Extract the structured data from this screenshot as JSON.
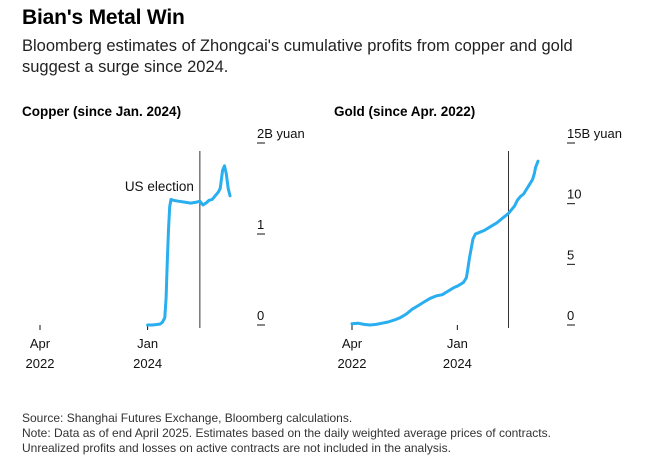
{
  "header": {
    "title": "Bian's Metal Win",
    "subtitle": "Bloomberg estimates of Zhongcai's cumulative profits from copper and gold suggest a surge since 2024."
  },
  "colors": {
    "line": "#29aef0",
    "axis": "#111111",
    "marker": "#333333"
  },
  "footer": {
    "source": "Source: Shanghai Futures Exchange, Bloomberg calculations.",
    "note1": "Note: Data as of end April 2025. Estimates based on the daily weighted average prices of contracts.",
    "note2": "Unrealized profits and losses on active contracts are not included in the analysis."
  },
  "chart_data": [
    {
      "type": "line",
      "title": "Copper (since Jan. 2024)",
      "unit": "B yuan",
      "xlim": [
        2022.25,
        2025.34
      ],
      "ylim": [
        0,
        2
      ],
      "yticks": [
        {
          "value": 2,
          "label": "2B yuan"
        },
        {
          "value": 1,
          "label": "1"
        },
        {
          "value": 0,
          "label": "0"
        }
      ],
      "xticks": [
        {
          "value": 2022.25,
          "label1": "Apr",
          "label2": "2022"
        },
        {
          "value": 2024.0,
          "label1": "Jan",
          "label2": "2024"
        }
      ],
      "annotation": {
        "label": "US election",
        "x": 2024.85
      },
      "series": [
        {
          "name": "Copper cumulative profit",
          "x": [
            2024.0,
            2024.08,
            2024.2,
            2024.24,
            2024.28,
            2024.3,
            2024.32,
            2024.34,
            2024.36,
            2024.38,
            2024.42,
            2024.5,
            2024.6,
            2024.7,
            2024.8,
            2024.85,
            2024.9,
            2024.95,
            2025.0,
            2025.05,
            2025.1,
            2025.15,
            2025.18,
            2025.2,
            2025.22,
            2025.25,
            2025.28,
            2025.31,
            2025.34
          ],
          "y": [
            0.0,
            0.0,
            0.01,
            0.03,
            0.08,
            0.3,
            0.7,
            1.05,
            1.3,
            1.38,
            1.37,
            1.36,
            1.35,
            1.34,
            1.35,
            1.36,
            1.32,
            1.34,
            1.37,
            1.38,
            1.42,
            1.46,
            1.5,
            1.6,
            1.7,
            1.75,
            1.66,
            1.5,
            1.42
          ]
        }
      ]
    },
    {
      "type": "line",
      "title": "Gold (since Apr. 2022)",
      "unit": "B yuan",
      "xlim": [
        2022.25,
        2025.34
      ],
      "ylim": [
        0,
        15
      ],
      "yticks": [
        {
          "value": 15,
          "label": "15B yuan"
        },
        {
          "value": 10,
          "label": "10"
        },
        {
          "value": 5,
          "label": "5"
        },
        {
          "value": 0,
          "label": "0"
        }
      ],
      "xticks": [
        {
          "value": 2022.25,
          "label1": "Apr",
          "label2": "2022"
        },
        {
          "value": 2024.0,
          "label1": "Jan",
          "label2": "2024"
        }
      ],
      "annotation": {
        "label": "",
        "x": 2024.85
      },
      "series": [
        {
          "name": "Gold cumulative profit",
          "x": [
            2022.25,
            2022.35,
            2022.45,
            2022.55,
            2022.65,
            2022.75,
            2022.85,
            2022.95,
            2023.05,
            2023.15,
            2023.25,
            2023.35,
            2023.45,
            2023.55,
            2023.65,
            2023.75,
            2023.85,
            2023.9,
            2023.95,
            2024.0,
            2024.1,
            2024.15,
            2024.17,
            2024.2,
            2024.23,
            2024.26,
            2024.3,
            2024.35,
            2024.45,
            2024.55,
            2024.65,
            2024.75,
            2024.8,
            2024.85,
            2024.9,
            2024.95,
            2025.0,
            2025.05,
            2025.1,
            2025.15,
            2025.2,
            2025.25,
            2025.28,
            2025.3,
            2025.34
          ],
          "y": [
            0.1,
            0.15,
            0.05,
            0.0,
            0.05,
            0.15,
            0.25,
            0.4,
            0.6,
            0.9,
            1.3,
            1.6,
            1.9,
            2.2,
            2.4,
            2.5,
            2.8,
            2.95,
            3.1,
            3.2,
            3.5,
            3.9,
            4.5,
            5.5,
            6.3,
            7.1,
            7.5,
            7.6,
            7.8,
            8.1,
            8.4,
            8.8,
            9.0,
            9.2,
            9.5,
            9.8,
            10.3,
            10.6,
            10.8,
            11.2,
            11.6,
            12.0,
            12.5,
            13.0,
            13.5
          ]
        }
      ]
    }
  ]
}
